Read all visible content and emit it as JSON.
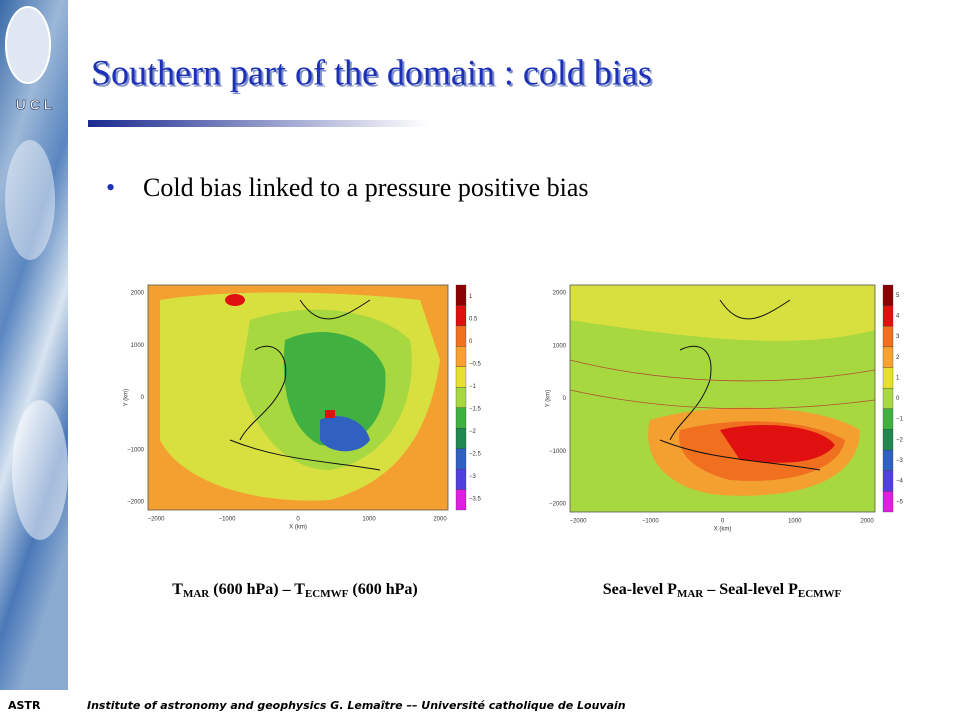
{
  "logo": "U C L",
  "title": "Southern part of the domain : cold bias",
  "bullet": "Cold bias linked to a pressure positive bias",
  "figures": [
    {
      "ylabel": "Y (km)",
      "xlabel": "X (km)",
      "yticks": [
        "2000",
        "1000",
        "0",
        "−1000",
        "−2000"
      ],
      "xticks": [
        "−2000",
        "−1000",
        "0",
        "1000",
        "2000"
      ],
      "colorbar": [
        "1",
        "0.5",
        "0",
        "−0.5",
        "−1",
        "−1.5",
        "−2",
        "−2.5",
        "−3",
        "−3.5"
      ],
      "colors": [
        "#8b0000",
        "#e01010",
        "#f07020",
        "#f8a030",
        "#e8e030",
        "#a8d840",
        "#40b040",
        "#208850",
        "#3060c0",
        "#5040e0",
        "#e020e0"
      ],
      "caption": [
        {
          "text": "T"
        },
        {
          "text": "MAR",
          "sub": true
        },
        {
          "text": " (600 hPa) – T"
        },
        {
          "text": "ECMWF",
          "sub": true
        },
        {
          "text": " (600 hPa)"
        }
      ]
    },
    {
      "ylabel": "Y (km)",
      "xlabel": "X (km)",
      "yticks": [
        "2000",
        "1000",
        "0",
        "−1000",
        "−2000"
      ],
      "xticks": [
        "−2000",
        "−1000",
        "0",
        "1000",
        "2000"
      ],
      "colorbar": [
        "5",
        "4",
        "3",
        "2",
        "1",
        "0",
        "−1",
        "−2",
        "−3",
        "−4",
        "−5"
      ],
      "colors": [
        "#8b0000",
        "#e01010",
        "#f07020",
        "#f8a030",
        "#e8e030",
        "#a8d840",
        "#40b040",
        "#208850",
        "#3060c0",
        "#5040e0",
        "#e020e0"
      ],
      "caption": [
        {
          "text": "Sea-level P"
        },
        {
          "text": "MAR",
          "sub": true
        },
        {
          "text": " – Seal-level P"
        },
        {
          "text": "ECMWF",
          "sub": true
        }
      ]
    }
  ],
  "footer": {
    "left": "ASTR",
    "text": "Institute of astronomy and geophysics G. Lemaître –– Université catholique de Louvain"
  }
}
